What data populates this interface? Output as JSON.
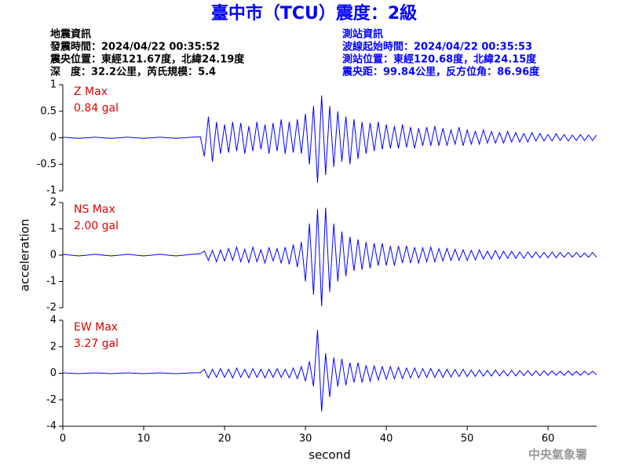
{
  "header": {
    "title": "臺中市（TCU）震度：2級",
    "left": [
      "地震資訊",
      "發震時間：2024/04/22 00:35:52",
      "震央位置：東經121.67度，北緯24.19度",
      "深　度：32.2公里，芮氏規模：5.4"
    ],
    "right": [
      "測站資訊",
      "波線起始時間：2024/04/22 00:35:53",
      "測站位置：東經120.68度，北緯24.15度",
      "震央距：99.84公里，反方位角：86.96度"
    ]
  },
  "footer": "中央氣象署",
  "chart_data": [
    {
      "type": "line",
      "color": "#0000ff",
      "annotations": [
        "Z Max",
        "0.84 gal"
      ],
      "xlim": [
        0,
        66
      ],
      "ylim": [
        -1,
        1
      ],
      "yticks": [
        -1,
        -0.5,
        0,
        0.5,
        1
      ],
      "x": [
        0,
        2,
        4,
        6,
        8,
        10,
        12,
        14,
        16,
        17,
        17.5,
        18,
        18.5,
        19,
        19.5,
        20,
        20.5,
        21,
        21.5,
        22,
        22.5,
        23,
        23.5,
        24,
        24.5,
        25,
        25.5,
        26,
        26.5,
        27,
        27.5,
        28,
        28.5,
        29,
        29.5,
        30,
        30.5,
        31,
        31.5,
        32,
        32.5,
        33,
        33.5,
        34,
        34.5,
        35,
        35.5,
        36,
        36.5,
        37,
        37.5,
        38,
        38.5,
        39,
        39.5,
        40,
        40.5,
        41,
        41.5,
        42,
        42.5,
        43,
        43.5,
        44,
        44.5,
        45,
        45.5,
        46,
        46.5,
        47,
        47.5,
        48,
        48.5,
        49,
        49.5,
        50,
        50.5,
        51,
        51.5,
        52,
        52.5,
        53,
        53.5,
        54,
        54.5,
        55,
        55.5,
        56,
        56.5,
        57,
        57.5,
        58,
        58.5,
        59,
        59.5,
        60,
        60.5,
        61,
        61.5,
        62,
        62.5,
        63,
        63.5,
        64,
        64.5,
        65,
        65.5,
        66
      ],
      "values": [
        0.01,
        -0.01,
        0.01,
        -0.01,
        0.01,
        -0.01,
        0.01,
        -0.01,
        0.01,
        0.02,
        -0.35,
        0.4,
        -0.45,
        0.3,
        -0.3,
        0.25,
        -0.28,
        0.3,
        -0.25,
        0.28,
        -0.3,
        0.22,
        -0.25,
        0.3,
        -0.22,
        0.25,
        -0.3,
        0.28,
        -0.25,
        0.35,
        -0.3,
        0.3,
        -0.28,
        0.35,
        -0.3,
        0.45,
        -0.5,
        0.6,
        -0.85,
        0.8,
        -0.7,
        0.6,
        -0.55,
        0.5,
        -0.45,
        0.4,
        -0.5,
        0.35,
        -0.4,
        0.3,
        -0.3,
        0.28,
        -0.25,
        0.3,
        -0.22,
        0.25,
        -0.2,
        0.22,
        -0.2,
        0.25,
        -0.18,
        0.2,
        -0.2,
        0.18,
        -0.15,
        0.2,
        -0.15,
        0.22,
        -0.15,
        0.18,
        -0.15,
        0.15,
        -0.12,
        0.2,
        -0.15,
        0.15,
        -0.12,
        0.12,
        -0.12,
        0.15,
        -0.1,
        0.12,
        -0.1,
        0.1,
        -0.1,
        0.12,
        -0.08,
        0.1,
        -0.08,
        0.08,
        -0.08,
        0.1,
        -0.06,
        0.08,
        -0.06,
        0.06,
        -0.06,
        0.08,
        -0.05,
        0.06,
        -0.06,
        0.05,
        -0.05,
        0.06,
        -0.05,
        0.05,
        -0.05,
        0.05
      ]
    },
    {
      "type": "line",
      "color": "#0000ff",
      "annotations": [
        "NS Max",
        "2.00 gal"
      ],
      "ylabel": "acceleration",
      "xlim": [
        0,
        66
      ],
      "ylim": [
        -2,
        2
      ],
      "yticks": [
        -2,
        -1,
        0,
        1,
        2
      ],
      "x": [
        0,
        2,
        4,
        6,
        8,
        10,
        12,
        14,
        16,
        17,
        17.5,
        18,
        18.5,
        19,
        19.5,
        20,
        20.5,
        21,
        21.5,
        22,
        22.5,
        23,
        23.5,
        24,
        24.5,
        25,
        25.5,
        26,
        26.5,
        27,
        27.5,
        28,
        28.5,
        29,
        29.5,
        30,
        30.5,
        31,
        31.5,
        32,
        32.5,
        33,
        33.5,
        34,
        34.5,
        35,
        35.5,
        36,
        36.5,
        37,
        37.5,
        38,
        38.5,
        39,
        39.5,
        40,
        40.5,
        41,
        41.5,
        42,
        42.5,
        43,
        43.5,
        44,
        44.5,
        45,
        45.5,
        46,
        46.5,
        47,
        47.5,
        48,
        48.5,
        49,
        49.5,
        50,
        50.5,
        51,
        51.5,
        52,
        52.5,
        53,
        53.5,
        54,
        54.5,
        55,
        55.5,
        56,
        56.5,
        57,
        57.5,
        58,
        58.5,
        59,
        59.5,
        60,
        60.5,
        61,
        61.5,
        62,
        62.5,
        63,
        63.5,
        64,
        64.5,
        65,
        65.5,
        66
      ],
      "values": [
        0.03,
        -0.03,
        0.03,
        -0.03,
        0.03,
        -0.03,
        0.03,
        -0.03,
        0.03,
        0.05,
        0.15,
        -0.2,
        0.18,
        -0.25,
        0.2,
        -0.22,
        0.25,
        -0.2,
        0.3,
        -0.25,
        0.22,
        -0.28,
        0.3,
        -0.25,
        0.2,
        -0.3,
        0.28,
        -0.22,
        0.25,
        -0.3,
        0.3,
        -0.35,
        0.4,
        -0.45,
        0.5,
        -1.0,
        1.2,
        -1.5,
        1.75,
        -1.95,
        1.8,
        -1.4,
        1.2,
        -1.0,
        0.9,
        -0.8,
        0.7,
        -0.6,
        0.6,
        -0.55,
        0.5,
        -0.5,
        0.45,
        -0.4,
        0.45,
        -0.4,
        0.35,
        -0.4,
        0.35,
        -0.3,
        0.35,
        -0.3,
        0.3,
        -0.3,
        0.28,
        -0.25,
        0.3,
        -0.25,
        0.25,
        -0.22,
        0.25,
        -0.2,
        0.22,
        -0.2,
        0.2,
        -0.2,
        0.18,
        -0.18,
        0.2,
        -0.15,
        0.15,
        -0.15,
        0.18,
        -0.15,
        0.15,
        -0.12,
        0.15,
        -0.12,
        0.12,
        -0.12,
        0.12,
        -0.1,
        0.12,
        -0.1,
        0.1,
        -0.1,
        0.12,
        -0.1,
        0.1,
        -0.08,
        0.1,
        -0.08,
        0.1,
        -0.08,
        0.08,
        -0.08,
        0.1,
        -0.08
      ]
    },
    {
      "type": "line",
      "color": "#0000ff",
      "annotations": [
        "EW Max",
        "3.27 gal"
      ],
      "xlabel": "second",
      "xlim": [
        0,
        66
      ],
      "xticks": [
        0,
        10,
        20,
        30,
        40,
        50,
        60
      ],
      "ylim": [
        -4,
        4
      ],
      "yticks": [
        -4,
        -2,
        0,
        2,
        4
      ],
      "x": [
        0,
        2,
        4,
        6,
        8,
        10,
        12,
        14,
        16,
        17,
        17.5,
        18,
        18.5,
        19,
        19.5,
        20,
        20.5,
        21,
        21.5,
        22,
        22.5,
        23,
        23.5,
        24,
        24.5,
        25,
        25.5,
        26,
        26.5,
        27,
        27.5,
        28,
        28.5,
        29,
        29.5,
        30,
        30.5,
        31,
        31.5,
        32,
        32.5,
        33,
        33.5,
        34,
        34.5,
        35,
        35.5,
        36,
        36.5,
        37,
        37.5,
        38,
        38.5,
        39,
        39.5,
        40,
        40.5,
        41,
        41.5,
        42,
        42.5,
        43,
        43.5,
        44,
        44.5,
        45,
        45.5,
        46,
        46.5,
        47,
        47.5,
        48,
        48.5,
        49,
        49.5,
        50,
        50.5,
        51,
        51.5,
        52,
        52.5,
        53,
        53.5,
        54,
        54.5,
        55,
        55.5,
        56,
        56.5,
        57,
        57.5,
        58,
        58.5,
        59,
        59.5,
        60,
        60.5,
        61,
        61.5,
        62,
        62.5,
        63,
        63.5,
        64,
        64.5,
        65,
        65.5,
        66
      ],
      "values": [
        0.03,
        -0.03,
        0.03,
        -0.03,
        0.03,
        -0.03,
        0.03,
        -0.03,
        0.03,
        0.05,
        0.3,
        -0.35,
        0.3,
        -0.3,
        0.35,
        -0.3,
        0.3,
        -0.35,
        0.4,
        -0.3,
        0.3,
        -0.35,
        0.35,
        -0.3,
        0.3,
        -0.35,
        0.3,
        -0.3,
        0.35,
        -0.3,
        0.3,
        -0.35,
        0.4,
        -0.4,
        0.5,
        -0.6,
        0.9,
        -1.0,
        3.27,
        -2.9,
        1.5,
        -1.8,
        1.2,
        -1.0,
        1.1,
        -0.9,
        0.8,
        -0.7,
        0.8,
        -0.7,
        0.6,
        -0.6,
        0.55,
        -0.5,
        0.5,
        -0.45,
        0.5,
        -0.4,
        0.45,
        -0.4,
        0.4,
        -0.35,
        0.4,
        -0.35,
        0.35,
        -0.3,
        0.35,
        -0.3,
        0.3,
        -0.3,
        0.3,
        -0.28,
        0.28,
        -0.25,
        0.3,
        -0.25,
        0.25,
        -0.25,
        0.25,
        -0.22,
        0.22,
        -0.22,
        0.25,
        -0.2,
        0.2,
        -0.2,
        0.22,
        -0.2,
        0.2,
        -0.18,
        0.2,
        -0.18,
        0.18,
        -0.18,
        0.2,
        -0.15,
        0.18,
        -0.15,
        0.15,
        -0.15,
        0.18,
        -0.15,
        0.15,
        -0.15,
        0.15,
        -0.12,
        0.15,
        -0.12
      ]
    }
  ]
}
